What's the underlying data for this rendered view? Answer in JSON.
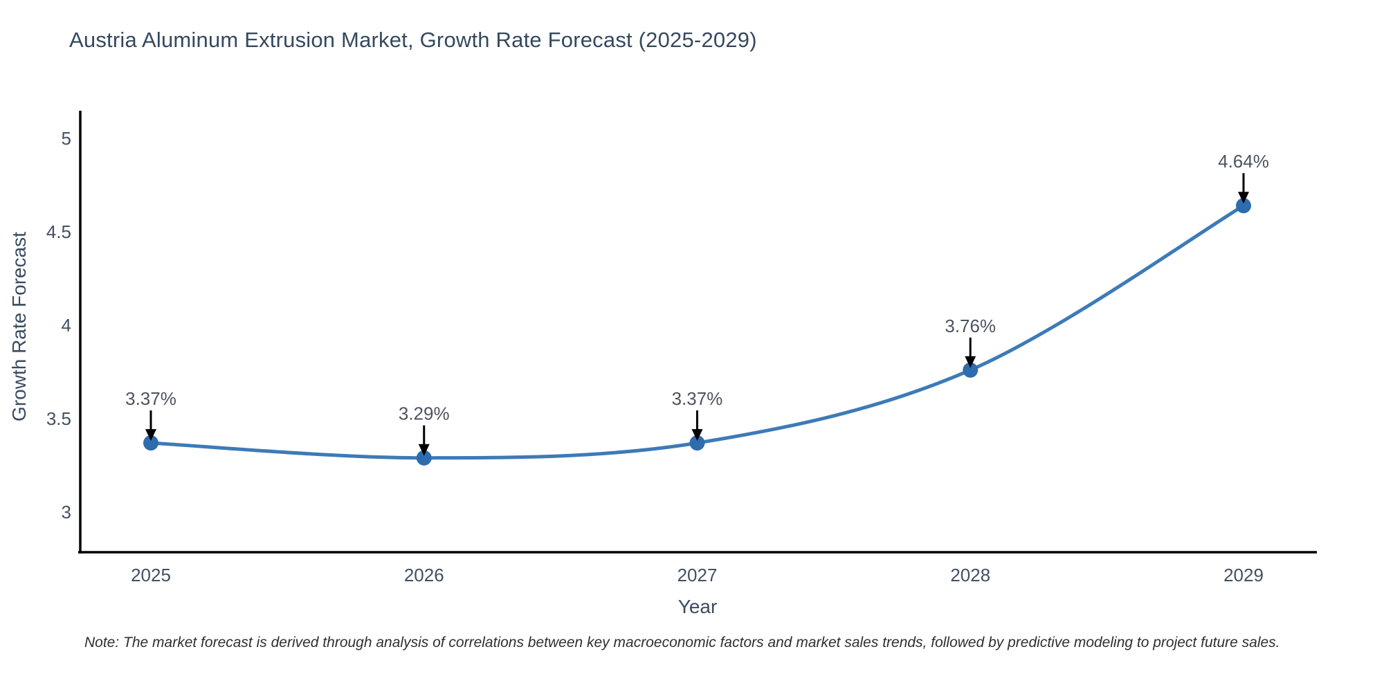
{
  "page": {
    "note": "Note: The market forecast is derived through analysis of correlations between key macroeconomic factors and market sales trends, followed by predictive modeling to project future sales."
  },
  "chart_data": {
    "type": "line",
    "title": "Austria Aluminum Extrusion Market, Growth Rate Forecast (2025-2029)",
    "xlabel": "Year",
    "ylabel": "Growth Rate Forecast",
    "categories": [
      "2025",
      "2026",
      "2027",
      "2028",
      "2029"
    ],
    "series": [
      {
        "name": "Growth Rate Forecast",
        "values": [
          3.37,
          3.29,
          3.37,
          3.76,
          4.64
        ]
      }
    ],
    "point_labels": [
      "3.37%",
      "3.29%",
      "3.37%",
      "3.76%",
      "4.64%"
    ],
    "yticks": [
      3,
      3.5,
      4,
      4.5,
      5
    ],
    "ylim": [
      2.79,
      5.15
    ],
    "grid": false,
    "legend": "none",
    "line_shape": "spline",
    "marker": "circle",
    "annotation_arrows": true,
    "colors": {
      "line": "#3d7ab8",
      "marker": "#2e6dad",
      "axis": "#000000",
      "title": "#35495e",
      "tick": "#42506100",
      "tick_text": "#425061",
      "annotation_text": "#4c5260",
      "arrow": "#000000",
      "note": "#2f2f2f",
      "background": "#ffffff"
    }
  }
}
